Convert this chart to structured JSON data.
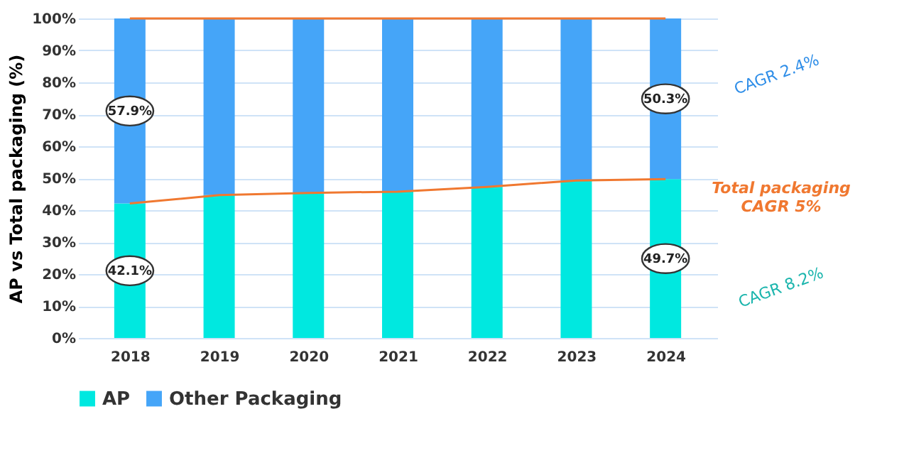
{
  "chart_data": {
    "type": "bar",
    "stacked": true,
    "ylabel": "AP vs Total packaging (%)",
    "categories": [
      "2018",
      "2019",
      "2020",
      "2021",
      "2022",
      "2023",
      "2024"
    ],
    "series": [
      {
        "name": "AP",
        "color": "#00e8e0",
        "values": [
          42.1,
          44.7,
          45.4,
          45.8,
          47.3,
          49.3,
          49.7
        ],
        "value_labels": [
          "42.1%",
          null,
          null,
          null,
          null,
          null,
          "49.7%"
        ]
      },
      {
        "name": "Other Packaging",
        "color": "#45a5f8",
        "values": [
          57.9,
          55.3,
          54.6,
          54.2,
          52.7,
          50.7,
          50.3
        ],
        "value_labels": [
          "57.9%",
          null,
          null,
          null,
          null,
          null,
          "50.3%"
        ]
      },
      {
        "type": "line",
        "color": "#f07830",
        "values": [
          42.1,
          44.7,
          45.4,
          45.8,
          47.3,
          49.3,
          49.7
        ]
      },
      {
        "type": "line",
        "color": "#f07830",
        "values": [
          100,
          100,
          100,
          100,
          100,
          100,
          100
        ]
      }
    ],
    "ylim": [
      0,
      100
    ],
    "yticks": [
      {
        "value": 0,
        "label": "0%"
      },
      {
        "value": 10,
        "label": "10%"
      },
      {
        "value": 20,
        "label": "20%"
      },
      {
        "value": 30,
        "label": "30%"
      },
      {
        "value": 40,
        "label": "40%"
      },
      {
        "value": 50,
        "label": "50%"
      },
      {
        "value": 60,
        "label": "60%"
      },
      {
        "value": 70,
        "label": "70%"
      },
      {
        "value": 80,
        "label": "80%"
      },
      {
        "value": 90,
        "label": "90%"
      },
      {
        "value": 100,
        "label": "100%"
      }
    ],
    "grid": "y",
    "legend": "bottom",
    "annotations": [
      "CAGR 2.4%",
      "Total packaging CAGR 5%",
      "CAGR 8.2%"
    ]
  }
}
